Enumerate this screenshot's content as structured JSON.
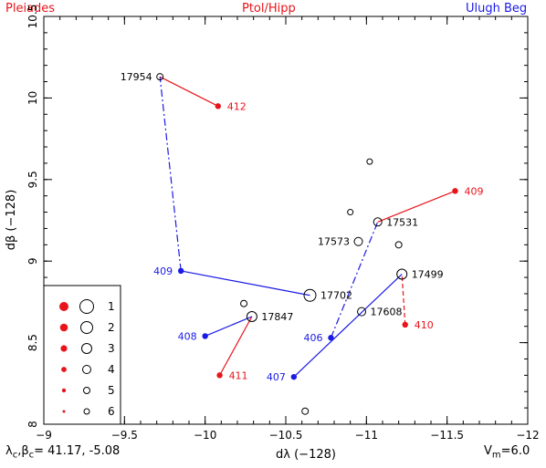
{
  "header": {
    "left": "Pleiades",
    "center": "Ptol/Hipp",
    "right": "Ulugh Beg"
  },
  "footer": {
    "left_label": "λ",
    "left_sub1": "c",
    "left_mid": ",β",
    "left_sub2": "c",
    "left_values": "= 41.17, -5.08",
    "right_label": "V",
    "right_sub": "m",
    "right_value": "=6.0"
  },
  "colors": {
    "ptol": "#e8141b",
    "ulugh": "#1a1ae6",
    "axis": "#000000"
  },
  "chart_data": {
    "type": "scatter",
    "xlabel": "dλ  (−128)",
    "ylabel": "dβ  (−128)",
    "xlim": [
      -9,
      -12
    ],
    "ylim": [
      8,
      10.5
    ],
    "x_ticks": [
      -9,
      -9.5,
      -10,
      -10.5,
      -11,
      -11.5,
      -12
    ],
    "x_tick_labels": [
      "−9",
      "−9.5",
      "−10",
      "−10.5",
      "−11",
      "−11.5",
      "−12"
    ],
    "y_ticks": [
      8,
      8.5,
      9,
      9.5,
      10,
      10.5
    ],
    "y_tick_labels": [
      "8",
      "8.5",
      "9",
      "9.5",
      "10",
      "10.5"
    ],
    "stars": [
      {
        "label": "17954",
        "x": -9.72,
        "y": 10.13,
        "mag": 5
      },
      {
        "label": "17531",
        "x": -11.07,
        "y": 9.24,
        "mag": 4
      },
      {
        "label": "17573",
        "x": -10.95,
        "y": 9.12,
        "mag": 4
      },
      {
        "label": "17499",
        "x": -11.22,
        "y": 8.92,
        "mag": 3
      },
      {
        "label": "17702",
        "x": -10.65,
        "y": 8.79,
        "mag": 2
      },
      {
        "label": "17608",
        "x": -10.97,
        "y": 8.69,
        "mag": 4
      },
      {
        "label": "17847",
        "x": -10.29,
        "y": 8.66,
        "mag": 3
      },
      {
        "label": "",
        "x": -11.02,
        "y": 9.61,
        "mag": 6
      },
      {
        "label": "",
        "x": -10.9,
        "y": 9.3,
        "mag": 6
      },
      {
        "label": "",
        "x": -11.2,
        "y": 9.1,
        "mag": 5
      },
      {
        "label": "",
        "x": -10.24,
        "y": 8.74,
        "mag": 5
      },
      {
        "label": "",
        "x": -10.62,
        "y": 8.08,
        "mag": 5
      }
    ],
    "ptol": [
      {
        "label": "412",
        "x": -10.08,
        "y": 9.95,
        "star": "17954"
      },
      {
        "label": "409",
        "x": -11.55,
        "y": 9.43,
        "star": "17531"
      },
      {
        "label": "410",
        "x": -11.24,
        "y": 8.61,
        "star": "17499",
        "dashed": true
      },
      {
        "label": "411",
        "x": -10.09,
        "y": 8.3,
        "star": "17847"
      }
    ],
    "ulugh": [
      {
        "label": "409",
        "x": -9.85,
        "y": 8.94,
        "star": "17702",
        "link": "17954"
      },
      {
        "label": "408",
        "x": -10.0,
        "y": 8.54,
        "star": "17847"
      },
      {
        "label": "406",
        "x": -10.78,
        "y": 8.53,
        "star": "17531",
        "dashdot": true
      },
      {
        "label": "407",
        "x": -10.55,
        "y": 8.29,
        "star": "17499"
      }
    ],
    "legend": {
      "placement": "bottom-left",
      "rows": [
        {
          "label": "1"
        },
        {
          "label": "2"
        },
        {
          "label": "3"
        },
        {
          "label": "4"
        },
        {
          "label": "5"
        },
        {
          "label": "6"
        }
      ]
    }
  }
}
